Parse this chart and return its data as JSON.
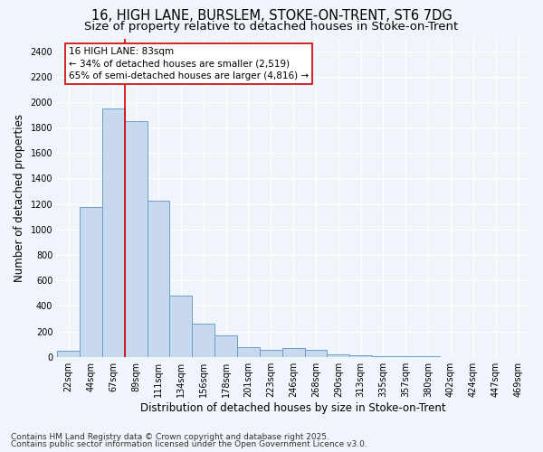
{
  "title_line1": "16, HIGH LANE, BURSLEM, STOKE-ON-TRENT, ST6 7DG",
  "title_line2": "Size of property relative to detached houses in Stoke-on-Trent",
  "xlabel": "Distribution of detached houses by size in Stoke-on-Trent",
  "ylabel": "Number of detached properties",
  "categories": [
    "22sqm",
    "44sqm",
    "67sqm",
    "89sqm",
    "111sqm",
    "134sqm",
    "156sqm",
    "178sqm",
    "201sqm",
    "223sqm",
    "246sqm",
    "268sqm",
    "290sqm",
    "313sqm",
    "335sqm",
    "357sqm",
    "380sqm",
    "402sqm",
    "424sqm",
    "447sqm",
    "469sqm"
  ],
  "values": [
    50,
    1175,
    1950,
    1850,
    1225,
    480,
    260,
    165,
    75,
    55,
    70,
    55,
    20,
    10,
    5,
    3,
    2,
    1,
    1,
    1,
    1
  ],
  "bar_color": "#c8d8ed",
  "bar_edge_color": "#6a9fcb",
  "vline_color": "#cc0000",
  "vline_x_index": 2,
  "annotation_text": "16 HIGH LANE: 83sqm\n← 34% of detached houses are smaller (2,519)\n65% of semi-detached houses are larger (4,816) →",
  "annotation_box_color": "#ffffff",
  "annotation_box_edge": "#cc0000",
  "ylim": [
    0,
    2500
  ],
  "yticks": [
    0,
    200,
    400,
    600,
    800,
    1000,
    1200,
    1400,
    1600,
    1800,
    2000,
    2200,
    2400
  ],
  "footnote1": "Contains HM Land Registry data © Crown copyright and database right 2025.",
  "footnote2": "Contains public sector information licensed under the Open Government Licence v3.0.",
  "bg_color": "#f0f4fb",
  "plot_bg_color": "#f0f4fb",
  "grid_color": "#ffffff",
  "title_fontsize": 10.5,
  "subtitle_fontsize": 9.5,
  "label_fontsize": 8.5,
  "tick_fontsize": 7,
  "annot_fontsize": 7.5,
  "footnote_fontsize": 6.5
}
